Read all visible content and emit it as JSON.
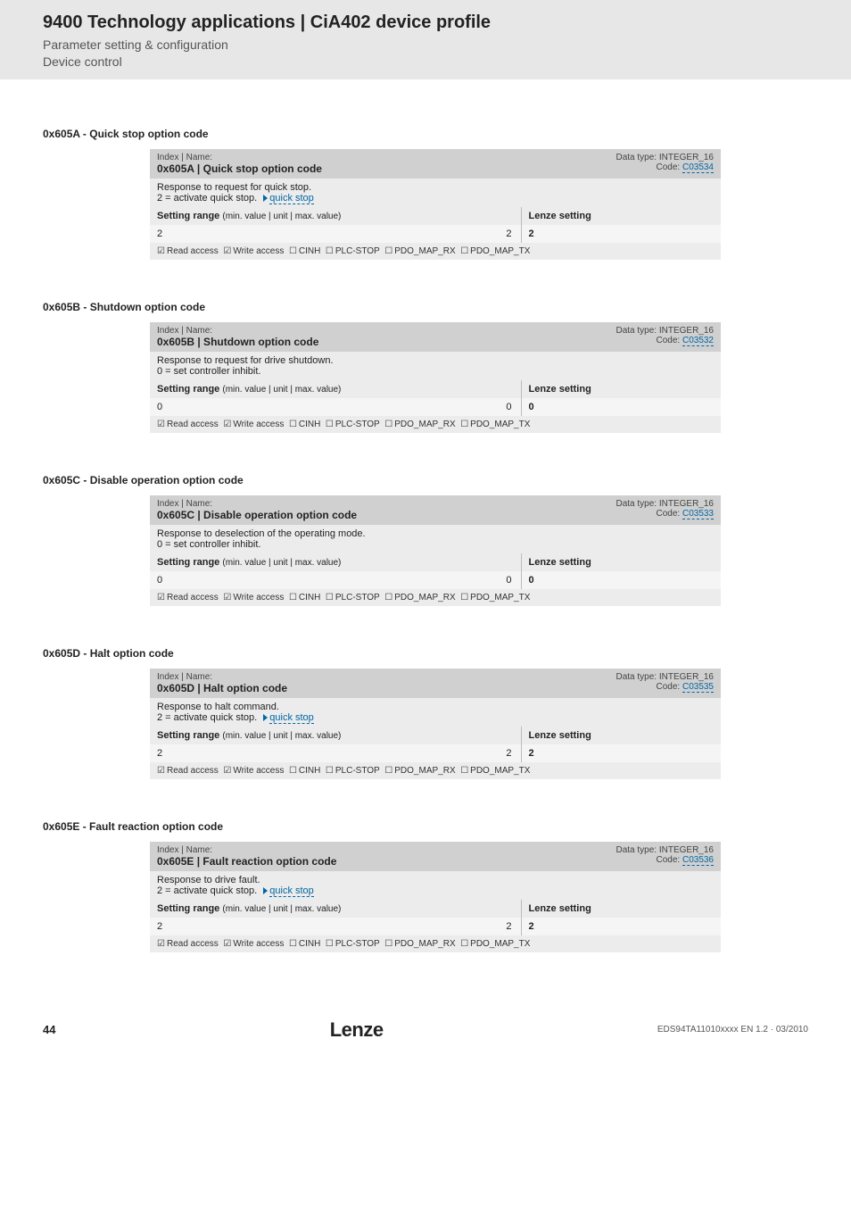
{
  "header": {
    "title": "9400 Technology applications | CiA402 device profile",
    "subtitle1": "Parameter setting & configuration",
    "subtitle2": "Device control"
  },
  "access_flags": {
    "read": "Read access",
    "write": "Write access",
    "cinh": "CINH",
    "plcstop": "PLC-STOP",
    "pdo_rx": "PDO_MAP_RX",
    "pdo_tx": "PDO_MAP_TX"
  },
  "common": {
    "index_name_label": "Index | Name:",
    "data_type_label": "Data type: INTEGER_16",
    "code_label": "Code:",
    "setting_range": "Setting range",
    "setting_range_sub": "(min. value | unit | max. value)",
    "lenze_setting": "Lenze setting",
    "quick_stop_link": "quick stop"
  },
  "sections": [
    {
      "heading": "0x605A - Quick stop option code",
      "title": "0x605A | Quick stop option code",
      "code": "C03534",
      "desc_line1": "Response to request for quick stop.",
      "desc_line2_prefix": "2 = activate quick stop.",
      "desc_has_link": true,
      "min": "2",
      "max": "2",
      "lenze": "2"
    },
    {
      "heading": "0x605B - Shutdown option code",
      "title": "0x605B | Shutdown option code",
      "code": "C03532",
      "desc_line1": "Response to request for drive shutdown.",
      "desc_line2_prefix": "0 = set controller inhibit.",
      "desc_has_link": false,
      "min": "0",
      "max": "0",
      "lenze": "0"
    },
    {
      "heading": "0x605C - Disable operation option code",
      "title": "0x605C | Disable operation option code",
      "code": "C03533",
      "desc_line1": "Response to deselection of the operating mode.",
      "desc_line2_prefix": "0 = set controller inhibit.",
      "desc_has_link": false,
      "min": "0",
      "max": "0",
      "lenze": "0"
    },
    {
      "heading": "0x605D - Halt option code",
      "title": "0x605D | Halt option code",
      "code": "C03535",
      "desc_line1": "Response to halt command.",
      "desc_line2_prefix": "2 = activate quick stop.",
      "desc_has_link": true,
      "min": "2",
      "max": "2",
      "lenze": "2"
    },
    {
      "heading": "0x605E - Fault reaction option code",
      "title": "0x605E | Fault reaction option code",
      "code": "C03536",
      "desc_line1": "Response to drive fault.",
      "desc_line2_prefix": "2 = activate quick stop.",
      "desc_has_link": true,
      "min": "2",
      "max": "2",
      "lenze": "2"
    }
  ],
  "footer": {
    "page": "44",
    "logo": "Lenze",
    "docno": "EDS94TA11010xxxx EN 1.2 · 03/2010"
  }
}
